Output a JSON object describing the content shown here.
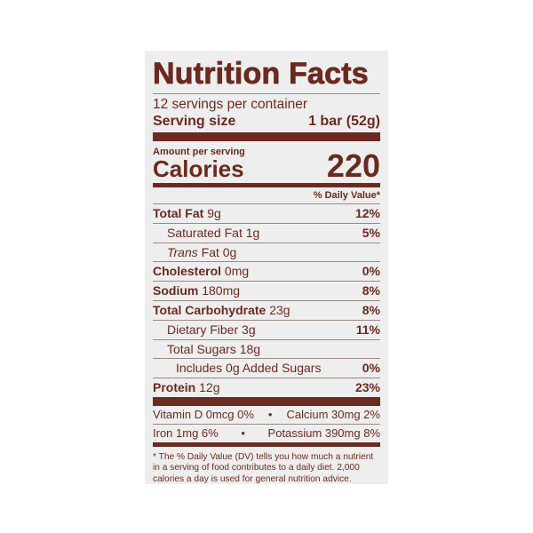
{
  "title": "Nutrition Facts",
  "servings_per_container": "12 servings per container",
  "serving_size_label": "Serving size",
  "serving_size_value": "1 bar (52g)",
  "amount_per_serving": "Amount per serving",
  "calories_label": "Calories",
  "calories_value": "220",
  "dv_header": "% Daily Value*",
  "nutrients": [
    {
      "name": "Total Fat",
      "amount": "9g",
      "dv": "12%"
    },
    {
      "name": "Saturated Fat",
      "amount": "1g",
      "dv": "5%"
    },
    {
      "name": "Trans",
      "name2": " Fat",
      "amount": "0g",
      "dv": ""
    },
    {
      "name": "Cholesterol",
      "amount": "0mg",
      "dv": "0%"
    },
    {
      "name": "Sodium",
      "amount": "180mg",
      "dv": "8%"
    },
    {
      "name": "Total Carbohydrate",
      "amount": "23g",
      "dv": "8%"
    },
    {
      "name": "Dietary Fiber",
      "amount": "3g",
      "dv": "11%"
    },
    {
      "name": "Total Sugars",
      "amount": "18g",
      "dv": ""
    },
    {
      "name": "Includes 0g Added Sugars",
      "amount": "",
      "dv": "0%"
    },
    {
      "name": "Protein",
      "amount": "12g",
      "dv": "23%"
    }
  ],
  "vitamins": [
    {
      "left": "Vitamin D 0mcg 0%",
      "sep": "•",
      "right": "Calcium 30mg 2%"
    },
    {
      "left": "Iron 1mg 6%",
      "sep": "•",
      "right": "Potassium 390mg 8%"
    }
  ],
  "footnote": "* The % Daily Value (DV) tells you how much a nutrient in a serving of food contributes to a daily diet. 2,000 calories a day is used for general nutrition advice.",
  "colors": {
    "ink": "#6b2a1f",
    "panel": "#eeeeee"
  }
}
